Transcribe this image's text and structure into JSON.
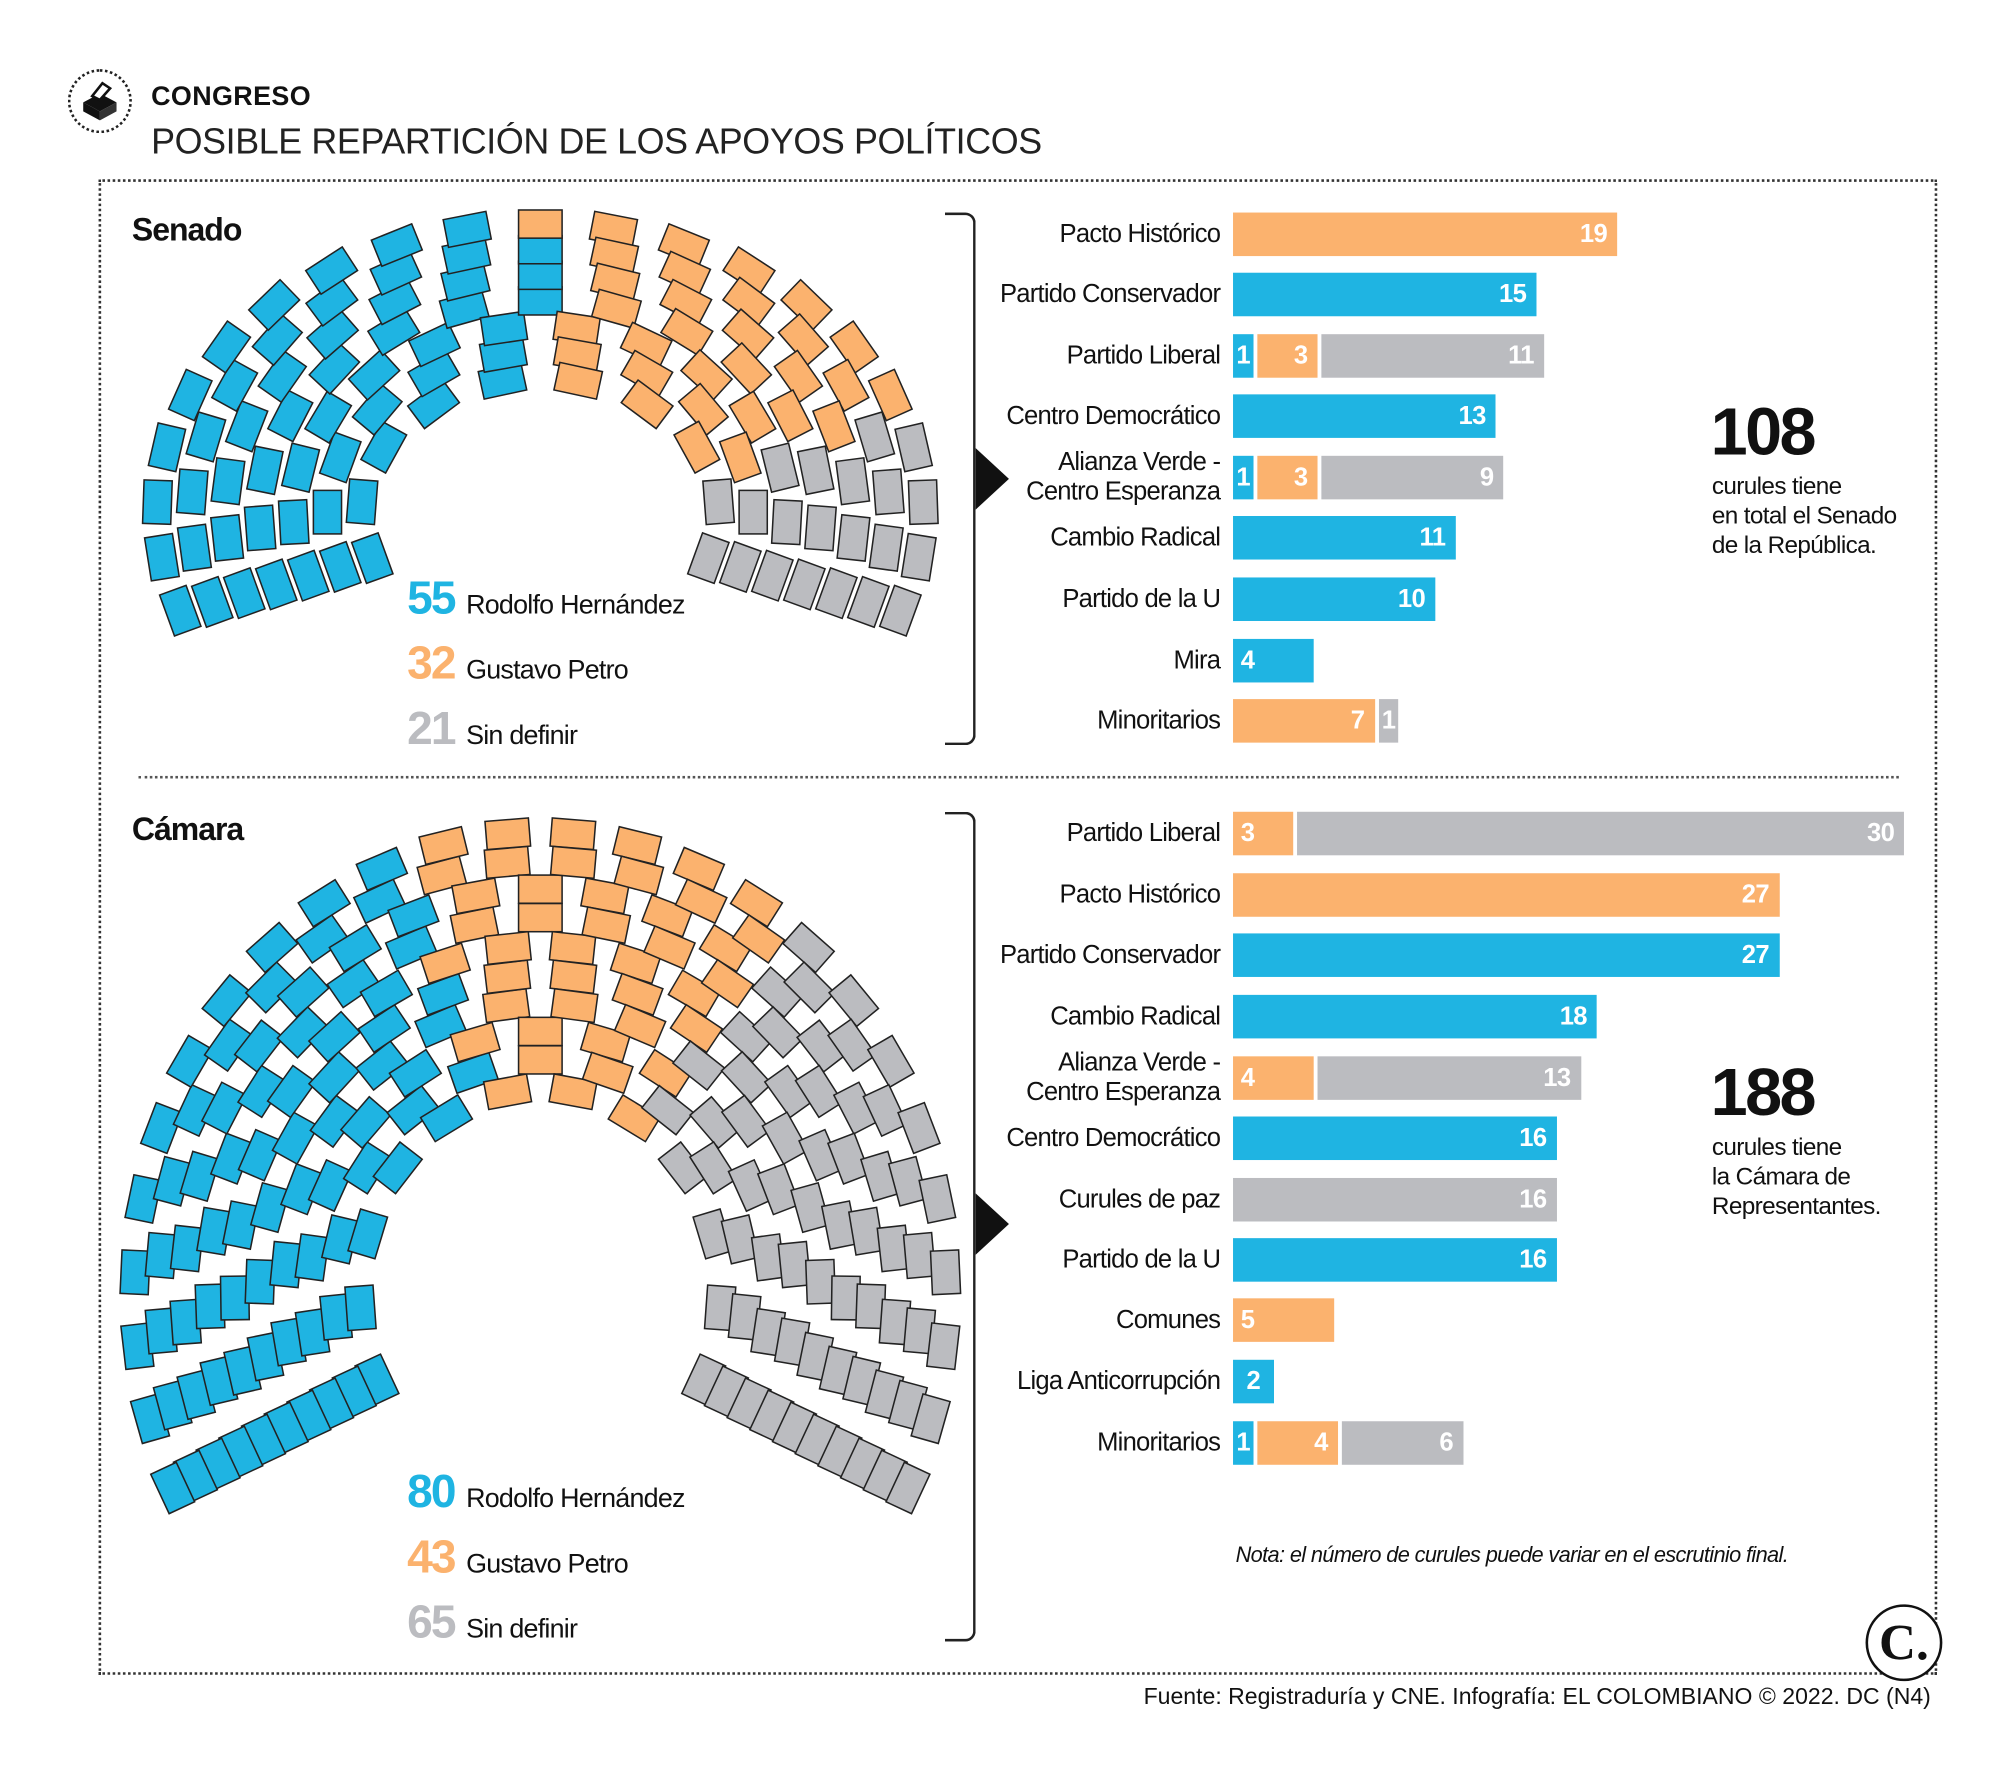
{
  "header": {
    "kicker": "CONGRESO",
    "title": "POSIBLE REPARTICIÓN DE LOS APOYOS POLÍTICOS",
    "icon": "ballot-box-icon"
  },
  "colors": {
    "hernandez": "#1fb4e2",
    "petro": "#fbb26e",
    "sin_definir": "#bbbcc0"
  },
  "senado": {
    "title": "Senado",
    "total": "108",
    "caption": [
      "curules tiene",
      "en total el Senado",
      "de la República."
    ],
    "legend": [
      {
        "value": "55",
        "label": "Rodolfo Hernández",
        "key": "hernandez"
      },
      {
        "value": "32",
        "label": "Gustavo Petro",
        "key": "petro"
      },
      {
        "value": "21",
        "label": "Sin definir",
        "key": "sin_definir"
      }
    ]
  },
  "camara": {
    "title": "Cámara",
    "total": "188",
    "caption": [
      "curules tiene",
      "la Cámara de",
      "Representantes."
    ],
    "legend": [
      {
        "value": "80",
        "label": "Rodolfo Hernández",
        "key": "hernandez"
      },
      {
        "value": "43",
        "label": "Gustavo Petro",
        "key": "petro"
      },
      {
        "value": "65",
        "label": "Sin definir",
        "key": "sin_definir"
      }
    ]
  },
  "chart_data": [
    {
      "type": "bar",
      "orientation": "horizontal",
      "stacked": true,
      "title": "Senado",
      "series_keys": [
        "hernandez",
        "petro",
        "sin_definir"
      ],
      "categories": [
        "Pacto Histórico",
        "Partido Conservador",
        "Partido Liberal",
        "Centro Democrático",
        "Alianza Verde - Centro Esperanza",
        "Cambio Radical",
        "Partido de la U",
        "Mira",
        "Minoritarios"
      ],
      "category_lines": [
        [
          "Pacto Histórico"
        ],
        [
          "Partido Conservador"
        ],
        [
          "Partido Liberal"
        ],
        [
          "Centro Democrático"
        ],
        [
          "Alianza Verde -",
          "Centro Esperanza"
        ],
        [
          "Cambio Radical"
        ],
        [
          "Partido de la U"
        ],
        [
          "Mira"
        ],
        [
          "Minoritarios"
        ]
      ],
      "values": [
        {
          "hernandez": 0,
          "petro": 19,
          "sin_definir": 0
        },
        {
          "hernandez": 15,
          "petro": 0,
          "sin_definir": 0
        },
        {
          "hernandez": 1,
          "petro": 3,
          "sin_definir": 11
        },
        {
          "hernandez": 13,
          "petro": 0,
          "sin_definir": 0
        },
        {
          "hernandez": 1,
          "petro": 3,
          "sin_definir": 9
        },
        {
          "hernandez": 11,
          "petro": 0,
          "sin_definir": 0
        },
        {
          "hernandez": 10,
          "petro": 0,
          "sin_definir": 0
        },
        {
          "hernandez": 4,
          "petro": 0,
          "sin_definir": 0
        },
        {
          "hernandez": 0,
          "petro": 7,
          "sin_definir": 1
        }
      ],
      "grid": false
    },
    {
      "type": "bar",
      "orientation": "horizontal",
      "stacked": true,
      "title": "Cámara",
      "series_keys": [
        "hernandez",
        "petro",
        "sin_definir"
      ],
      "categories": [
        "Partido Liberal",
        "Pacto Histórico",
        "Partido Conservador",
        "Cambio Radical",
        "Alianza Verde - Centro Esperanza",
        "Centro Democrático",
        "Curules de paz",
        "Partido de la U",
        "Comunes",
        "Liga Anticorrupción",
        "Minoritarios"
      ],
      "category_lines": [
        [
          "Partido Liberal"
        ],
        [
          "Pacto Histórico"
        ],
        [
          "Partido Conservador"
        ],
        [
          "Cambio Radical"
        ],
        [
          "Alianza Verde -",
          "Centro Esperanza"
        ],
        [
          "Centro Democrático"
        ],
        [
          "Curules de paz"
        ],
        [
          "Partido de la U"
        ],
        [
          "Comunes"
        ],
        [
          "Liga Anticorrupción"
        ],
        [
          "Minoritarios"
        ]
      ],
      "values": [
        {
          "hernandez": 0,
          "petro": 3,
          "sin_definir": 30
        },
        {
          "hernandez": 0,
          "petro": 27,
          "sin_definir": 0
        },
        {
          "hernandez": 27,
          "petro": 0,
          "sin_definir": 0
        },
        {
          "hernandez": 18,
          "petro": 0,
          "sin_definir": 0
        },
        {
          "hernandez": 0,
          "petro": 4,
          "sin_definir": 13
        },
        {
          "hernandez": 16,
          "petro": 0,
          "sin_definir": 0
        },
        {
          "hernandez": 0,
          "petro": 0,
          "sin_definir": 16
        },
        {
          "hernandez": 16,
          "petro": 0,
          "sin_definir": 0
        },
        {
          "hernandez": 0,
          "petro": 5,
          "sin_definir": 0
        },
        {
          "hernandez": 2,
          "petro": 0,
          "sin_definir": 0
        },
        {
          "hernandez": 1,
          "petro": 4,
          "sin_definir": 6
        }
      ],
      "grid": false
    }
  ],
  "footer": {
    "note": "Nota: el número de curules puede variar en el escrutinio final.",
    "source": "Fuente: Registraduría y CNE. Infografía: EL COLOMBIANO © 2022. DC (N4)",
    "brand_logo": "C."
  }
}
